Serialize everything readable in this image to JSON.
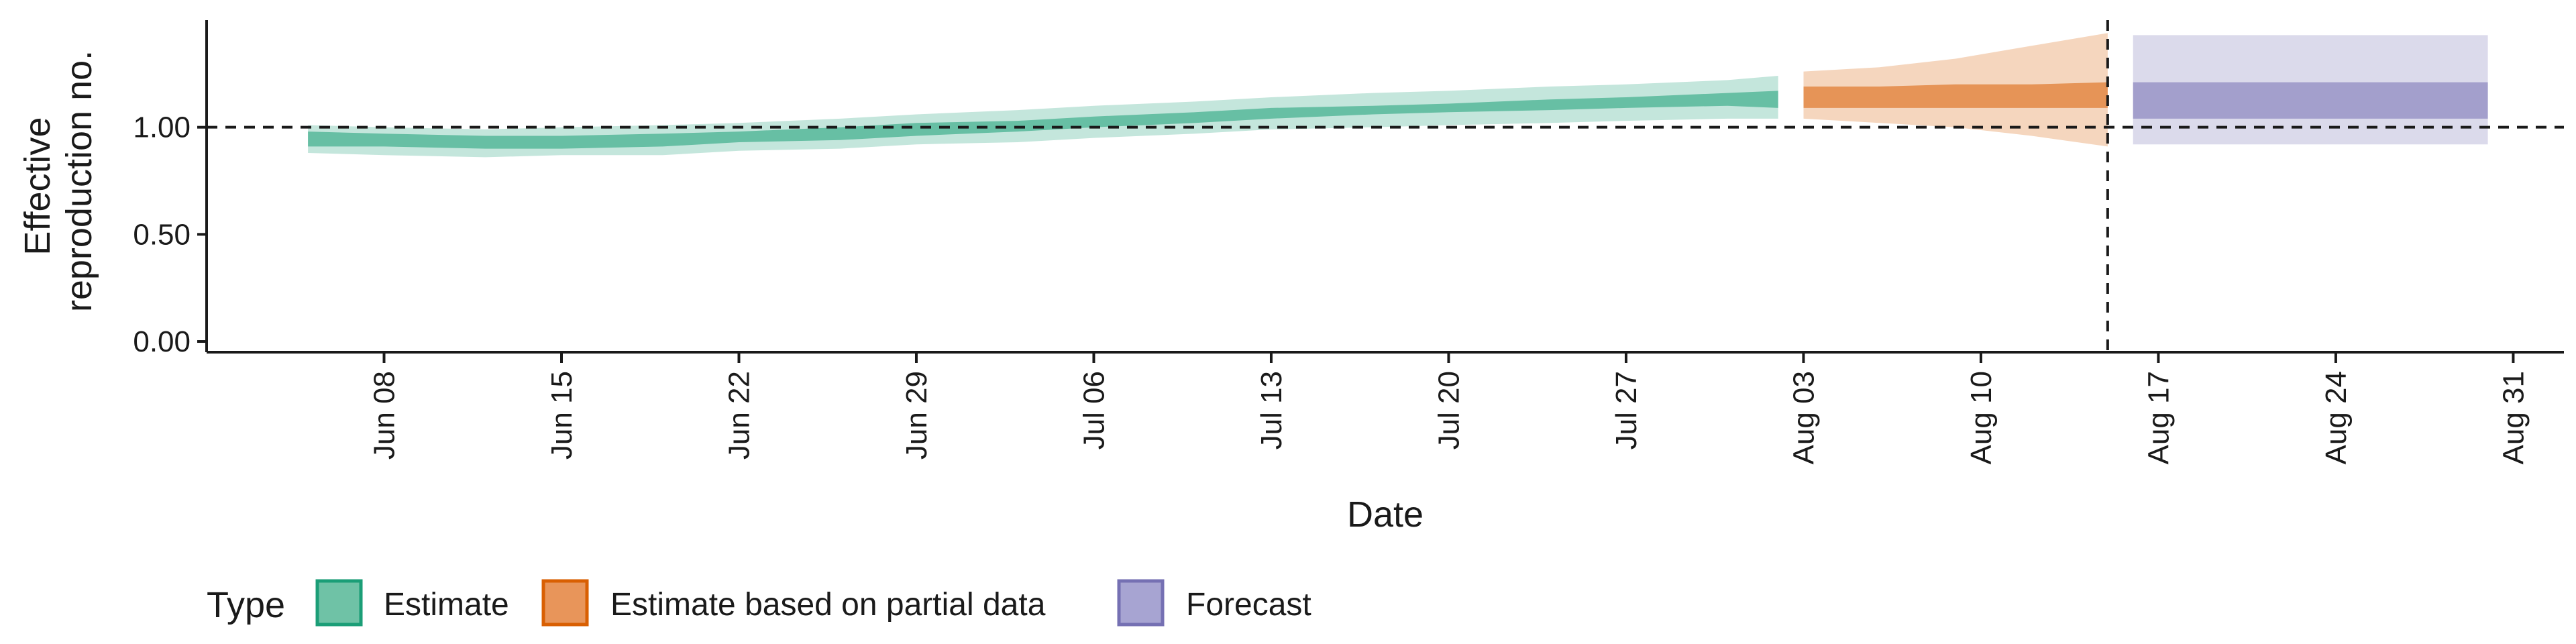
{
  "chart_data": {
    "type": "area",
    "xlabel": "Date",
    "ylabel_lines": [
      "Effective",
      "reproduction no."
    ],
    "x_start": "2020-06-01",
    "x_ticks": [
      "Jun 08",
      "Jun 15",
      "Jun 22",
      "Jun 29",
      "Jul 06",
      "Jul 13",
      "Jul 20",
      "Jul 27",
      "Aug 03",
      "Aug 10",
      "Aug 17",
      "Aug 24",
      "Aug 31"
    ],
    "x_tick_dates": [
      "2020-06-08",
      "2020-06-15",
      "2020-06-22",
      "2020-06-29",
      "2020-07-06",
      "2020-07-13",
      "2020-07-20",
      "2020-07-27",
      "2020-08-03",
      "2020-08-10",
      "2020-08-17",
      "2020-08-24",
      "2020-08-31"
    ],
    "xlim": [
      "2020-06-01",
      "2020-09-02"
    ],
    "y_ticks": [
      0.0,
      0.5,
      1.0
    ],
    "y_tick_labels": [
      "0.00",
      "0.50",
      "1.00"
    ],
    "ylim": [
      -0.05,
      1.5
    ],
    "hline": 1.0,
    "vline_date": "2020-08-15",
    "legend": {
      "title": "Type",
      "position": "bottom",
      "entries": [
        {
          "label": "Estimate",
          "fill": "#6fc2a6",
          "stroke": "#1b9e77"
        },
        {
          "label": "Estimate based on partial data",
          "fill": "#e8955a",
          "stroke": "#d95f02"
        },
        {
          "label": "Forecast",
          "fill": "#a7a4d2",
          "stroke": "#7570b3"
        }
      ]
    },
    "series": [
      {
        "name": "Estimate",
        "color": "#1b9e77",
        "x": [
          "2020-06-05",
          "2020-06-08",
          "2020-06-12",
          "2020-06-15",
          "2020-06-19",
          "2020-06-22",
          "2020-06-26",
          "2020-06-29",
          "2020-07-03",
          "2020-07-06",
          "2020-07-10",
          "2020-07-13",
          "2020-07-17",
          "2020-07-20",
          "2020-07-24",
          "2020-07-27",
          "2020-07-31",
          "2020-08-02"
        ],
        "median": [
          0.95,
          0.94,
          0.93,
          0.93,
          0.94,
          0.95,
          0.97,
          0.99,
          1.0,
          1.02,
          1.04,
          1.06,
          1.08,
          1.09,
          1.1,
          1.11,
          1.13,
          1.13
        ],
        "lower50": [
          0.91,
          0.91,
          0.9,
          0.9,
          0.91,
          0.93,
          0.94,
          0.96,
          0.98,
          1.0,
          1.02,
          1.04,
          1.06,
          1.07,
          1.08,
          1.09,
          1.1,
          1.09
        ],
        "upper50": [
          0.98,
          0.97,
          0.96,
          0.96,
          0.97,
          0.98,
          1.0,
          1.02,
          1.03,
          1.05,
          1.07,
          1.09,
          1.1,
          1.11,
          1.13,
          1.14,
          1.16,
          1.17
        ],
        "lower90": [
          0.88,
          0.87,
          0.86,
          0.87,
          0.87,
          0.89,
          0.9,
          0.92,
          0.93,
          0.95,
          0.97,
          0.99,
          1.0,
          1.01,
          1.02,
          1.03,
          1.04,
          1.04
        ],
        "upper90": [
          1.01,
          1.0,
          0.99,
          1.0,
          1.01,
          1.02,
          1.04,
          1.06,
          1.08,
          1.1,
          1.12,
          1.14,
          1.16,
          1.17,
          1.19,
          1.2,
          1.22,
          1.24
        ]
      },
      {
        "name": "Estimate based on partial data",
        "color": "#d95f02",
        "x": [
          "2020-08-03",
          "2020-08-06",
          "2020-08-09",
          "2020-08-12",
          "2020-08-15"
        ],
        "median": [
          1.14,
          1.15,
          1.15,
          1.15,
          1.15
        ],
        "lower50": [
          1.09,
          1.09,
          1.09,
          1.09,
          1.09
        ],
        "upper50": [
          1.19,
          1.19,
          1.2,
          1.2,
          1.21
        ],
        "lower90": [
          1.04,
          1.02,
          1.0,
          0.96,
          0.91
        ],
        "upper90": [
          1.26,
          1.28,
          1.32,
          1.38,
          1.44
        ]
      },
      {
        "name": "Forecast",
        "color": "#7570b3",
        "x": [
          "2020-08-16",
          "2020-08-30"
        ],
        "median": [
          1.15,
          1.15
        ],
        "lower50": [
          1.04,
          1.04
        ],
        "upper50": [
          1.21,
          1.21
        ],
        "lower90": [
          0.92,
          0.92
        ],
        "upper90": [
          1.43,
          1.43
        ]
      }
    ]
  }
}
